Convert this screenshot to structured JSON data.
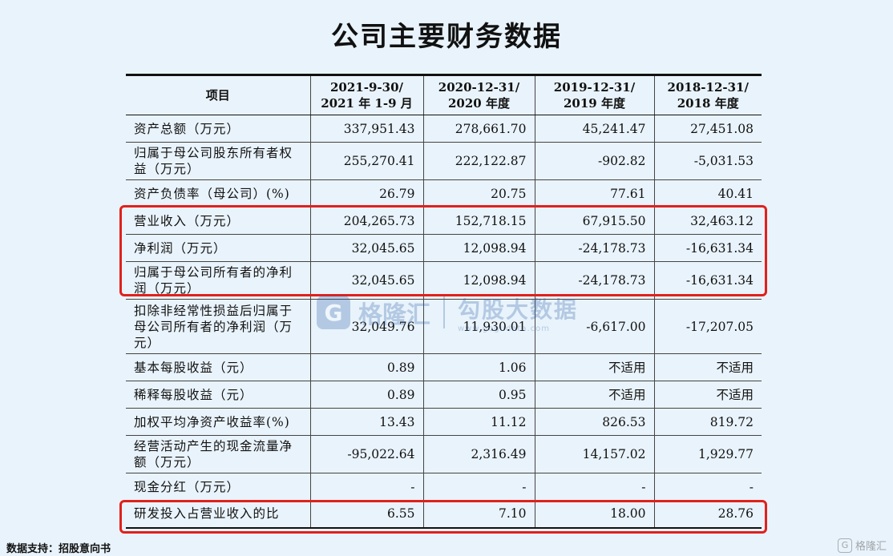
{
  "title": "公司主要财务数据",
  "table": {
    "header": {
      "item": "项目",
      "cols": [
        {
          "line1": "2021-9-30/",
          "line2": "2021 年 1-9 月"
        },
        {
          "line1": "2020-12-31/",
          "line2": "2020 年度"
        },
        {
          "line1": "2019-12-31/",
          "line2": "2019 年度"
        },
        {
          "line1": "2018-12-31/",
          "line2": "2018 年度"
        }
      ]
    },
    "rows": [
      {
        "label": "资产总额（万元）",
        "values": [
          "337,951.43",
          "278,661.70",
          "45,241.47",
          "27,451.08"
        ]
      },
      {
        "label": "归属于母公司股东所有者权益（万元）",
        "values": [
          "255,270.41",
          "222,122.87",
          "-902.82",
          "-5,031.53"
        ]
      },
      {
        "label": "资产负债率（母公司）(%)",
        "values": [
          "26.79",
          "20.75",
          "77.61",
          "40.41"
        ]
      },
      {
        "label": "营业收入（万元）",
        "values": [
          "204,265.73",
          "152,718.15",
          "67,915.50",
          "32,463.12"
        ]
      },
      {
        "label": "净利润（万元）",
        "values": [
          "32,045.65",
          "12,098.94",
          "-24,178.73",
          "-16,631.34"
        ]
      },
      {
        "label": "归属于母公司所有者的净利润（万元）",
        "values": [
          "32,045.65",
          "12,098.94",
          "-24,178.73",
          "-16,631.34"
        ]
      },
      {
        "label": "扣除非经常性损益后归属于母公司所有者的净利润（万元）",
        "values": [
          "32,049.76",
          "11,930.01",
          "-6,617.00",
          "-17,207.05"
        ]
      },
      {
        "label": "基本每股收益（元）",
        "values": [
          "0.89",
          "1.06",
          "不适用",
          "不适用"
        ]
      },
      {
        "label": "稀释每股收益（元）",
        "values": [
          "0.89",
          "0.95",
          "不适用",
          "不适用"
        ]
      },
      {
        "label": "加权平均净资产收益率(%)",
        "values": [
          "13.43",
          "11.12",
          "826.53",
          "819.72"
        ]
      },
      {
        "label": "经营活动产生的现金流量净额（万元）",
        "values": [
          "-95,022.64",
          "2,316.49",
          "14,157.02",
          "1,929.77"
        ]
      },
      {
        "label": "现金分红（万元）",
        "values": [
          "-",
          "-",
          "-",
          "-"
        ]
      },
      {
        "label": "研发投入占营业收入的比",
        "values": [
          "6.55",
          "7.10",
          "18.00",
          "28.76"
        ]
      }
    ]
  },
  "highlight_color": "#e0211d",
  "watermark": {
    "brand": "格隆汇",
    "right_line1": "勾股大数据",
    "right_line2": "www.gogudata.com"
  },
  "source": "数据支持：招股意向书",
  "corner_logo": "格隆汇"
}
